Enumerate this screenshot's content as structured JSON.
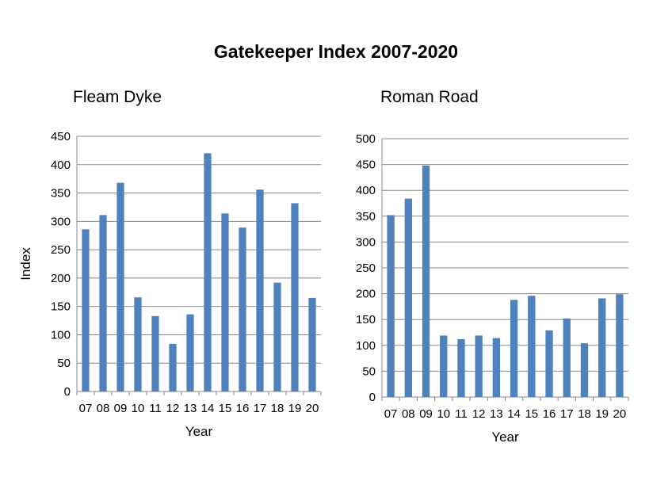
{
  "title": "Gatekeeper Index 2007-2020",
  "chart_data": [
    {
      "type": "bar",
      "title": "Fleam Dyke",
      "xlabel": "Year",
      "ylabel": "Index",
      "ylim": [
        0,
        450
      ],
      "yticks": [
        0,
        50,
        100,
        150,
        200,
        250,
        300,
        350,
        400,
        450
      ],
      "grid": true,
      "categories": [
        "07",
        "08",
        "09",
        "10",
        "11",
        "12",
        "13",
        "14",
        "15",
        "16",
        "17",
        "18",
        "19",
        "20"
      ],
      "values": [
        286,
        311,
        368,
        166,
        133,
        84,
        136,
        420,
        314,
        289,
        356,
        192,
        332,
        165
      ],
      "color": "#4f81bd"
    },
    {
      "type": "bar",
      "title": "Roman Road",
      "xlabel": "Year",
      "ylabel": "",
      "ylim": [
        0,
        500
      ],
      "yticks": [
        0,
        50,
        100,
        150,
        200,
        250,
        300,
        350,
        400,
        450,
        500
      ],
      "grid": true,
      "categories": [
        "07",
        "08",
        "09",
        "10",
        "11",
        "12",
        "13",
        "14",
        "15",
        "16",
        "17",
        "18",
        "19",
        "20"
      ],
      "values": [
        352,
        384,
        448,
        119,
        112,
        119,
        114,
        188,
        196,
        129,
        152,
        104,
        191,
        199
      ],
      "color": "#4f81bd"
    }
  ]
}
